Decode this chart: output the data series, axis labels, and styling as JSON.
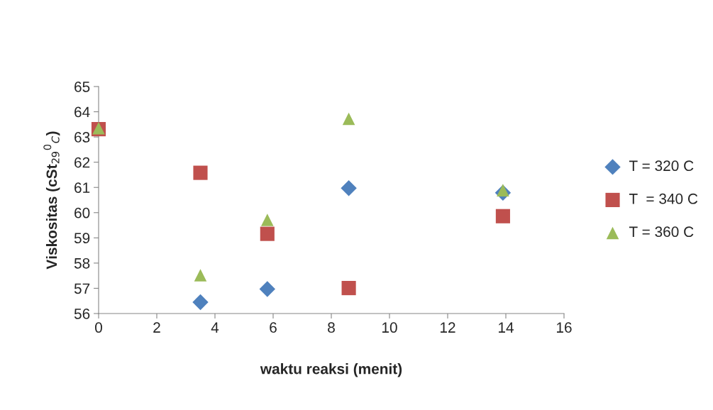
{
  "chart_data": {
    "type": "scatter",
    "xlabel": "waktu reaksi (menit)",
    "ylabel": "Viskositas (cSt$_{29}$$^{0}$$_{C}$)",
    "x": [
      0,
      3.5,
      5.8,
      8.6,
      13.9
    ],
    "series": [
      {
        "name": "T = 320 C",
        "color": "#4f81bd",
        "marker": "diamond",
        "values": [
          null,
          56.45,
          56.97,
          60.97,
          60.79
        ]
      },
      {
        "name": "T  = 340 C",
        "color": "#c0504d",
        "marker": "square",
        "values": [
          63.31,
          61.58,
          59.16,
          57.01,
          59.86
        ]
      },
      {
        "name": "T = 360 C",
        "color": "#9bbb59",
        "marker": "triangle",
        "values": [
          63.35,
          57.52,
          59.71,
          63.72,
          60.89
        ]
      }
    ],
    "xlim": [
      0,
      16
    ],
    "xticks": [
      0,
      2,
      4,
      6,
      8,
      10,
      12,
      14,
      16
    ],
    "ylim": [
      56,
      65
    ],
    "yticks": [
      56,
      57,
      58,
      59,
      60,
      61,
      62,
      63,
      64,
      65
    ],
    "grid": false,
    "legend": "right"
  }
}
